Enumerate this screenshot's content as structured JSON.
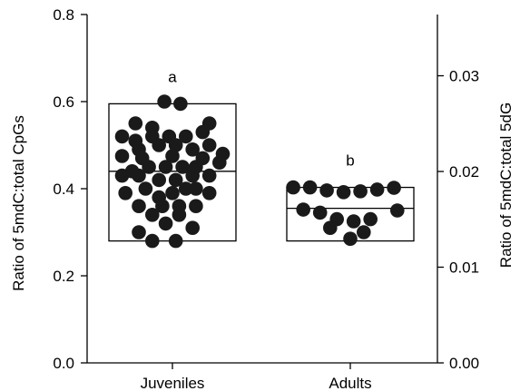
{
  "chart_data": {
    "type": "scatter",
    "categories": [
      "Juveniles",
      "Adults"
    ],
    "ylabel": "Ratio of 5mdC:total CpGs",
    "ylim": [
      0,
      0.8
    ],
    "yticks": [
      "0.0",
      "0.2",
      "0.4",
      "0.6",
      "0.8"
    ],
    "y2label": "Ratio of 5mdC:total 5dG",
    "y2lim": [
      0,
      0.0364
    ],
    "y2ticks": [
      "0.00",
      "0.01",
      "0.02",
      "0.03"
    ],
    "y2tick_values": [
      0,
      0.01,
      0.02,
      0.03
    ],
    "series": [
      {
        "category": "Juveniles",
        "box": {
          "q1": 0.28,
          "median": 0.44,
          "q3": 0.595
        },
        "significance": "a",
        "points": [
          [
            -0.12,
            0.6
          ],
          [
            0.12,
            0.595
          ],
          [
            -0.55,
            0.55
          ],
          [
            -0.3,
            0.54
          ],
          [
            0.55,
            0.55
          ],
          [
            -0.75,
            0.52
          ],
          [
            -0.55,
            0.51
          ],
          [
            -0.3,
            0.52
          ],
          [
            -0.05,
            0.52
          ],
          [
            0.2,
            0.52
          ],
          [
            0.45,
            0.53
          ],
          [
            -0.5,
            0.49
          ],
          [
            -0.2,
            0.5
          ],
          [
            0.05,
            0.5
          ],
          [
            0.3,
            0.49
          ],
          [
            0.55,
            0.5
          ],
          [
            0.75,
            0.48
          ],
          [
            -0.75,
            0.475
          ],
          [
            -0.45,
            0.47
          ],
          [
            0.0,
            0.475
          ],
          [
            0.45,
            0.47
          ],
          [
            0.7,
            0.46
          ],
          [
            -0.6,
            0.44
          ],
          [
            -0.35,
            0.45
          ],
          [
            -0.1,
            0.45
          ],
          [
            0.15,
            0.45
          ],
          [
            0.35,
            0.45
          ],
          [
            -0.75,
            0.43
          ],
          [
            -0.5,
            0.43
          ],
          [
            -0.2,
            0.42
          ],
          [
            0.05,
            0.42
          ],
          [
            0.3,
            0.43
          ],
          [
            0.55,
            0.43
          ],
          [
            -0.4,
            0.4
          ],
          [
            0.2,
            0.4
          ],
          [
            0.55,
            0.39
          ],
          [
            -0.7,
            0.39
          ],
          [
            -0.2,
            0.38
          ],
          [
            0.0,
            0.39
          ],
          [
            0.35,
            0.4
          ],
          [
            -0.5,
            0.36
          ],
          [
            -0.15,
            0.36
          ],
          [
            0.1,
            0.36
          ],
          [
            0.35,
            0.36
          ],
          [
            -0.3,
            0.34
          ],
          [
            0.1,
            0.34
          ],
          [
            -0.1,
            0.32
          ],
          [
            0.3,
            0.31
          ],
          [
            -0.5,
            0.3
          ],
          [
            -0.3,
            0.28
          ],
          [
            0.05,
            0.28
          ]
        ]
      },
      {
        "category": "Adults",
        "box": {
          "q1": 0.28,
          "median": 0.355,
          "q3": 0.403
        },
        "significance": "b",
        "points": [
          [
            -0.85,
            0.403
          ],
          [
            -0.6,
            0.403
          ],
          [
            -0.35,
            0.396
          ],
          [
            -0.1,
            0.392
          ],
          [
            0.15,
            0.394
          ],
          [
            0.4,
            0.398
          ],
          [
            0.65,
            0.402
          ],
          [
            -0.7,
            0.352
          ],
          [
            -0.45,
            0.345
          ],
          [
            0.7,
            0.35
          ],
          [
            -0.2,
            0.33
          ],
          [
            0.05,
            0.325
          ],
          [
            0.3,
            0.33
          ],
          [
            -0.3,
            0.31
          ],
          [
            0.2,
            0.3
          ],
          [
            0.0,
            0.285
          ]
        ]
      }
    ]
  }
}
